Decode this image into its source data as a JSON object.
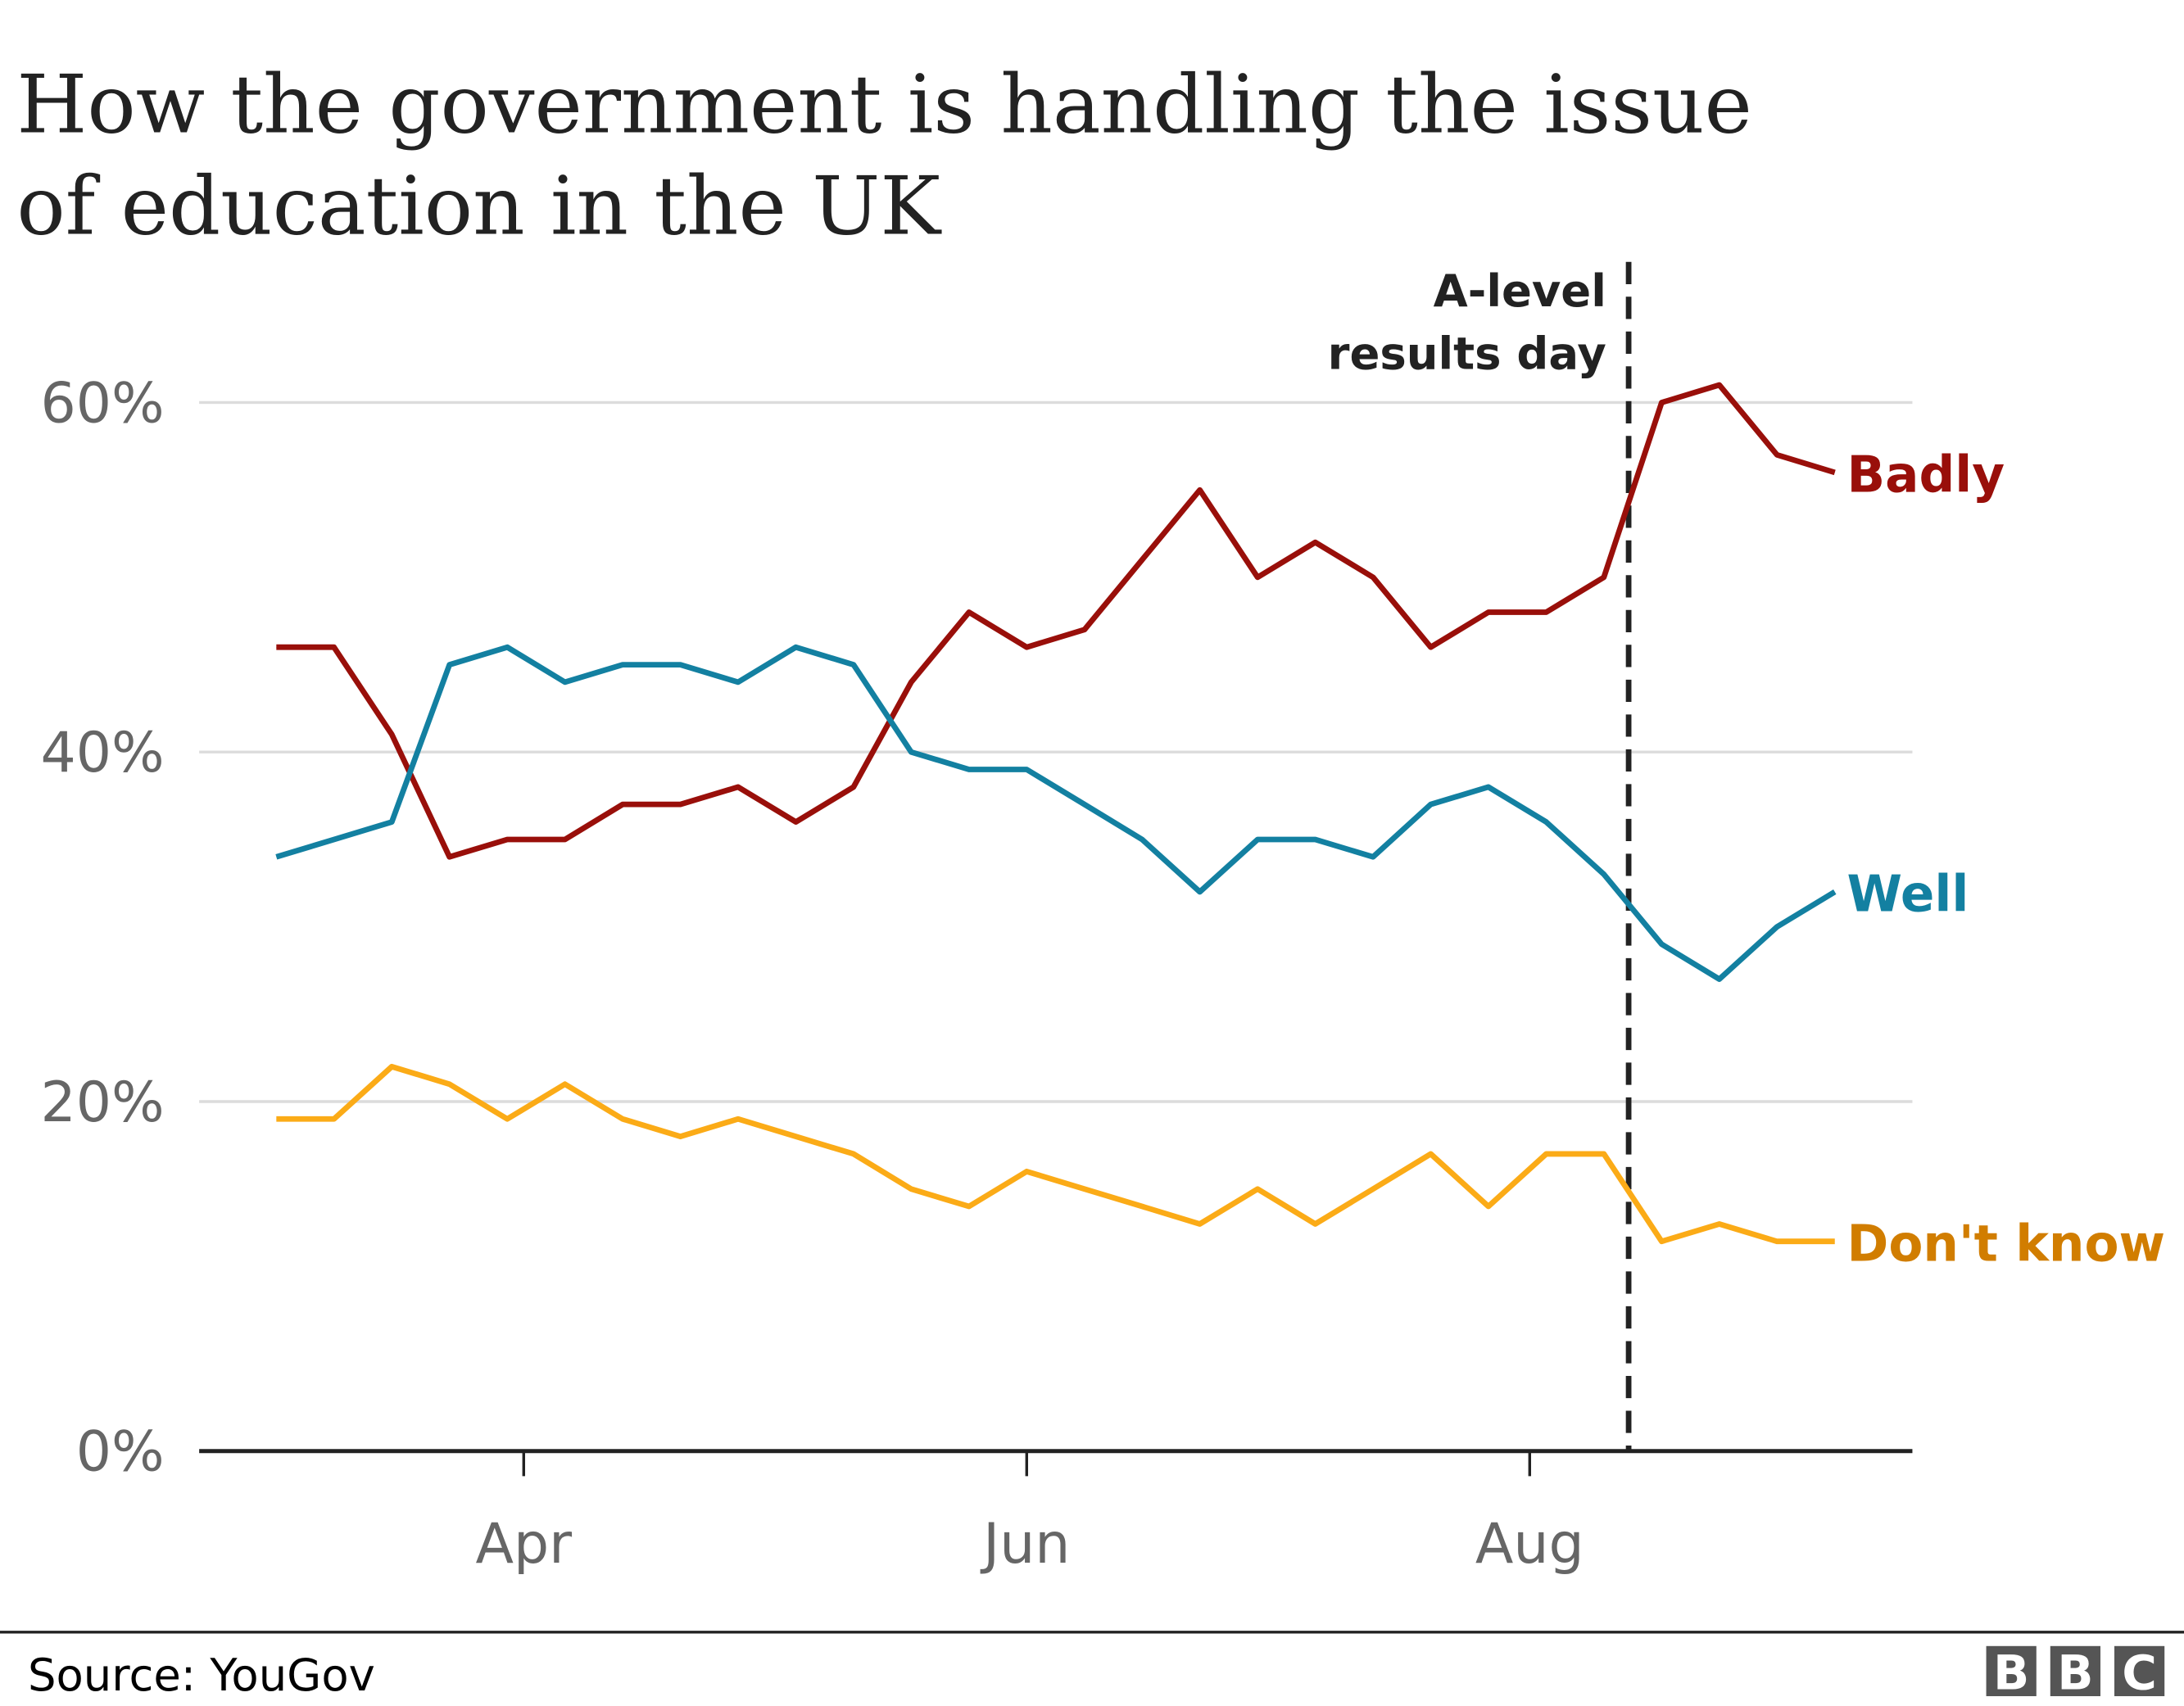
{
  "chart_data": {
    "type": "line",
    "title": "How the government is handling the issue of education in the UK",
    "title_lines": [
      "How the government is handling the issue",
      "of education in the UK"
    ],
    "x": [
      "2020-03-02",
      "2020-03-09",
      "2020-03-16",
      "2020-03-23",
      "2020-03-30",
      "2020-04-06",
      "2020-04-13",
      "2020-04-20",
      "2020-04-27",
      "2020-05-04",
      "2020-05-11",
      "2020-05-18",
      "2020-05-25",
      "2020-06-01",
      "2020-06-08",
      "2020-06-15",
      "2020-06-22",
      "2020-06-29",
      "2020-07-06",
      "2020-07-13",
      "2020-07-20",
      "2020-07-27",
      "2020-08-03",
      "2020-08-10",
      "2020-08-17",
      "2020-08-24",
      "2020-08-31",
      "2020-09-07"
    ],
    "series": [
      {
        "name": "Badly",
        "color": "#990f0a",
        "label_color": "#990f0a",
        "values": [
          46,
          46,
          41,
          34,
          35,
          35,
          37,
          37,
          38,
          36,
          38,
          44,
          48,
          46,
          47,
          51,
          55,
          50,
          52,
          50,
          46,
          48,
          48,
          50,
          60,
          61,
          57,
          56
        ]
      },
      {
        "name": "Well",
        "color": "#1380a1",
        "label_color": "#1380a1",
        "values": [
          34,
          35,
          36,
          45,
          46,
          44,
          45,
          45,
          44,
          46,
          45,
          40,
          39,
          39,
          37,
          35,
          32,
          35,
          35,
          34,
          37,
          38,
          36,
          33,
          29,
          27,
          30,
          32
        ]
      },
      {
        "name": "Don't know",
        "color": "#fbab17",
        "label_color": "#d17d00",
        "values": [
          19,
          19,
          22,
          21,
          19,
          21,
          19,
          18,
          19,
          18,
          17,
          15,
          14,
          16,
          15,
          14,
          13,
          15,
          13,
          15,
          17,
          14,
          17,
          17,
          12,
          13,
          12,
          12
        ]
      }
    ],
    "xticks": [
      {
        "date": "2020-04-01",
        "label": "Apr"
      },
      {
        "date": "2020-06-01",
        "label": "Jun"
      },
      {
        "date": "2020-08-01",
        "label": "Aug"
      }
    ],
    "yticks": [
      {
        "value": 0,
        "label": "0%"
      },
      {
        "value": 20,
        "label": "20%"
      },
      {
        "value": 40,
        "label": "40%"
      },
      {
        "value": 60,
        "label": "60%"
      }
    ],
    "ylim": [
      0,
      60
    ],
    "grid": true,
    "annotation": {
      "date": "2020-08-13",
      "lines": [
        "A-level",
        "results day"
      ]
    },
    "xlabel": "",
    "ylabel": ""
  },
  "footer": {
    "source": "Source: YouGov",
    "logo": [
      "B",
      "B",
      "C"
    ]
  }
}
